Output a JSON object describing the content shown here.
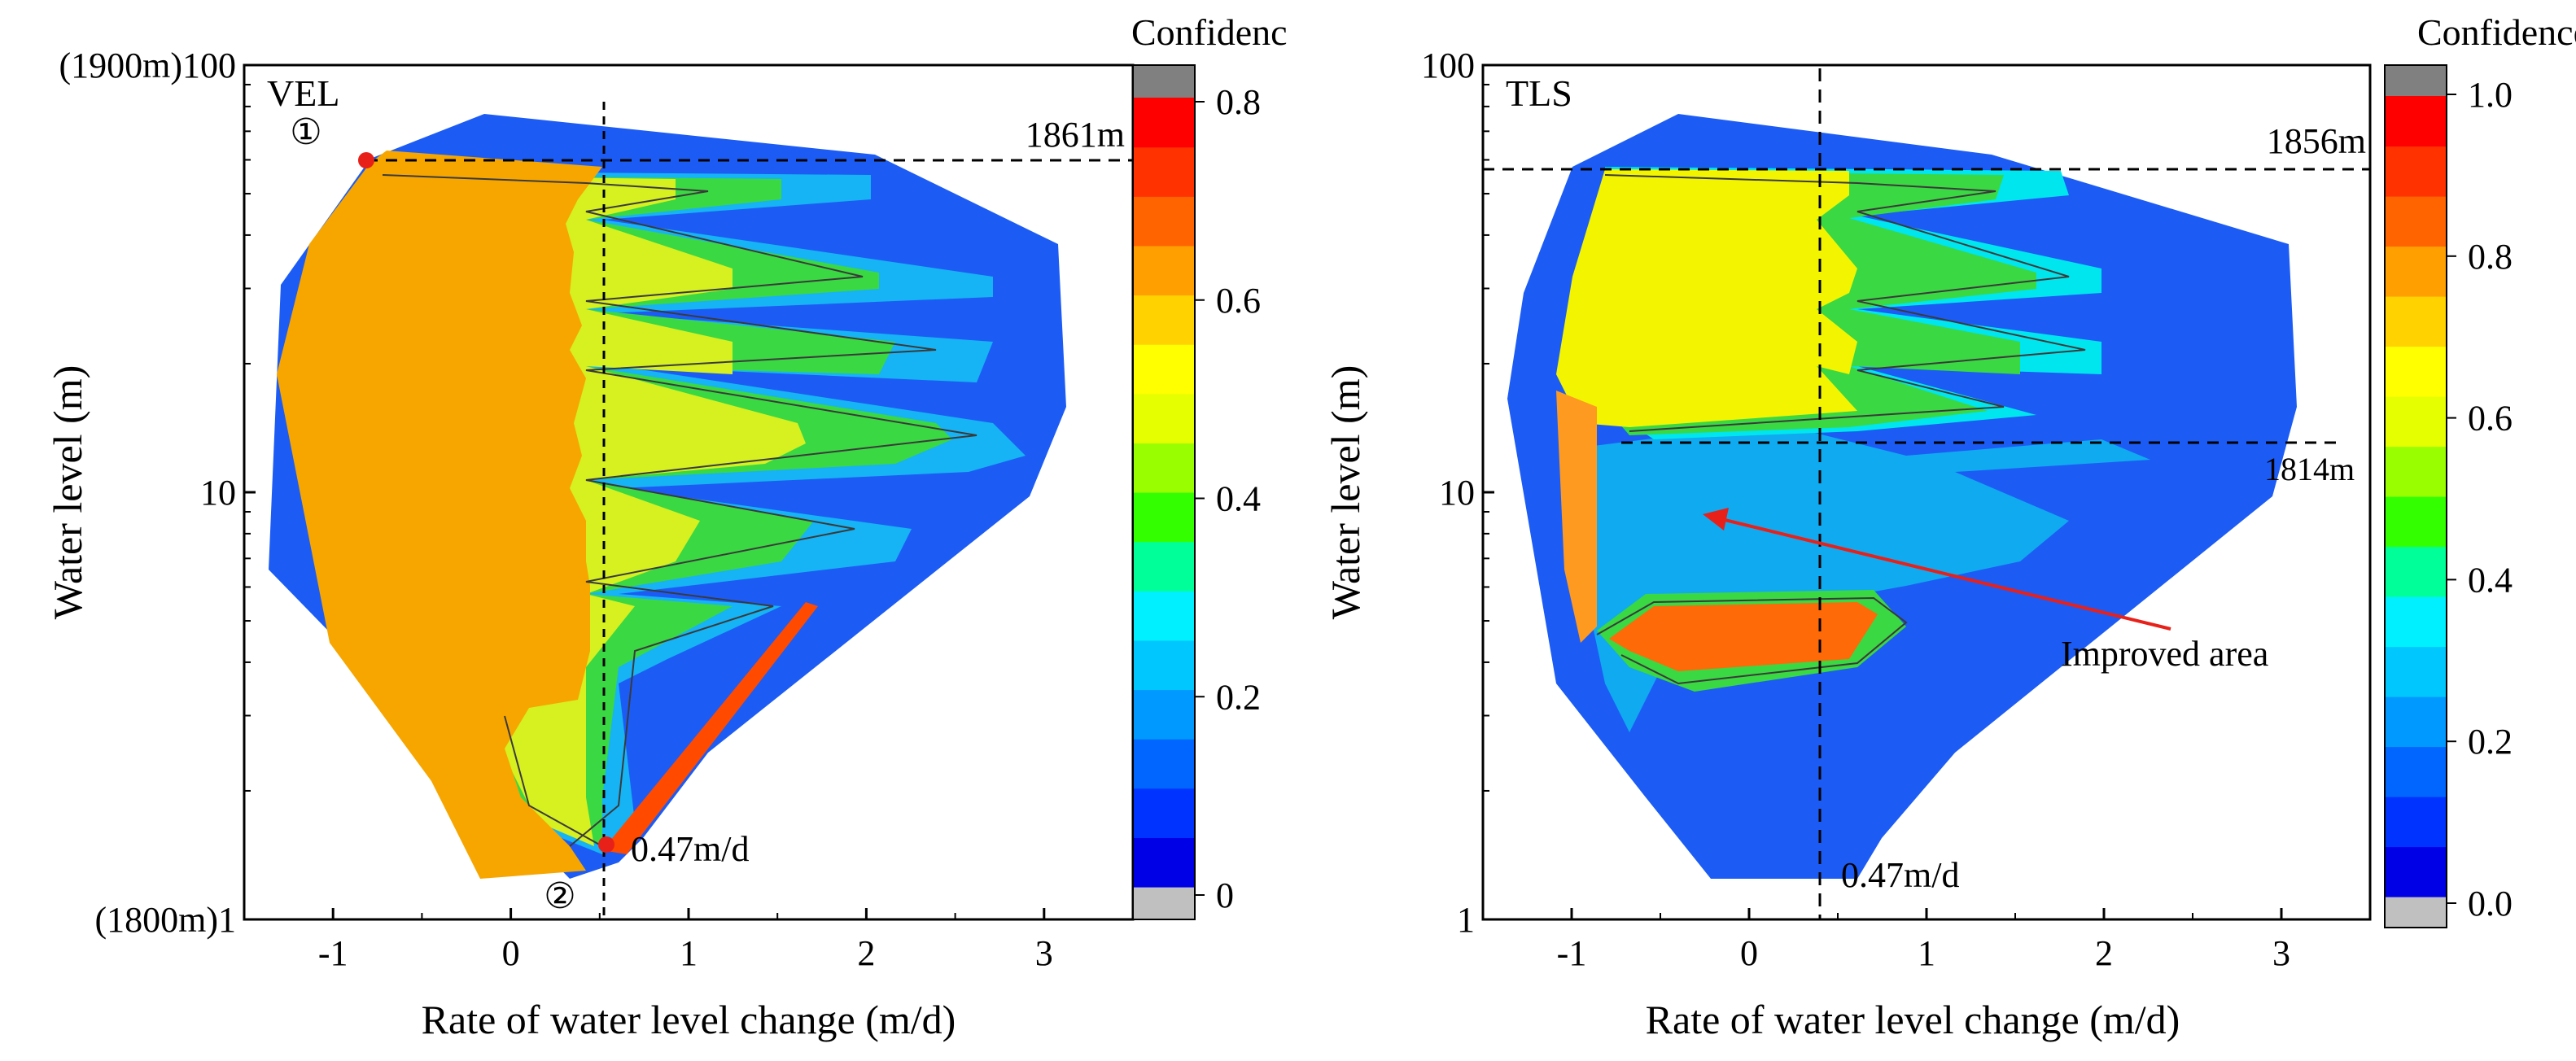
{
  "chart_data": [
    {
      "type": "heatmap",
      "panel_label": "VEL",
      "xlabel": "Rate of water level change (m/d)",
      "ylabel": "Water level (m)",
      "xlim": [
        -1.5,
        3.5
      ],
      "ylim": [
        1,
        100
      ],
      "yscale": "log",
      "x_ticks": [
        -1,
        0,
        1,
        2,
        3
      ],
      "x_tick_labels": [
        "-1",
        "0",
        "1",
        "2",
        "3"
      ],
      "y_ticks": [
        1,
        10,
        100
      ],
      "y_tick_labels": [
        "(1800m)1",
        "10",
        "(1900m)100"
      ],
      "colorbar": {
        "title": "Confidence",
        "range": [
          0,
          0.8
        ],
        "ticks": [
          0,
          0.2,
          0.4,
          0.6,
          0.8
        ],
        "tick_labels": [
          "0",
          "0.2",
          "0.4",
          "0.6",
          "0.8"
        ]
      },
      "annotations": [
        {
          "text": "1861m",
          "kind": "horizontal-reference",
          "y": 60
        },
        {
          "text": "0.47m/d",
          "kind": "vertical-reference",
          "x": 0.5
        },
        {
          "text": "①",
          "kind": "marker-label",
          "x": -0.85,
          "y": 60
        },
        {
          "text": "②",
          "kind": "marker-label",
          "x": 0.52,
          "y": 1.55
        }
      ],
      "points": [
        {
          "x": -0.85,
          "y": 60,
          "color": "#e8201a"
        },
        {
          "x": 0.52,
          "y": 1.55,
          "color": "#e8201a"
        }
      ]
    },
    {
      "type": "heatmap",
      "panel_label": "TLS",
      "xlabel": "Rate of water level change (m/d)",
      "ylabel": "Water level (m)",
      "xlim": [
        -1.5,
        3.5
      ],
      "ylim": [
        1,
        100
      ],
      "yscale": "log",
      "x_ticks": [
        -1,
        0,
        1,
        2,
        3
      ],
      "x_tick_labels": [
        "-1",
        "0",
        "1",
        "2",
        "3"
      ],
      "y_ticks": [
        1,
        10,
        100
      ],
      "y_tick_labels": [
        "1",
        "10",
        "100"
      ],
      "colorbar": {
        "title": "Confidence",
        "range": [
          0,
          1.0
        ],
        "ticks": [
          0,
          0.2,
          0.4,
          0.6,
          0.8,
          1.0
        ],
        "tick_labels": [
          "0.0",
          "0.2",
          "0.4",
          "0.6",
          "0.8",
          "1.0"
        ]
      },
      "annotations": [
        {
          "text": "1856m",
          "kind": "horizontal-reference",
          "y": 57
        },
        {
          "text": "1814m",
          "kind": "horizontal-reference",
          "y": 13
        },
        {
          "text": "0.47m/d",
          "kind": "vertical-reference",
          "x": 0.5
        },
        {
          "text": "Improved area",
          "kind": "arrow-callout",
          "x": 0.05,
          "y": 9.3
        }
      ]
    }
  ],
  "colors": {
    "scale": [
      "#0000e6",
      "#0033ff",
      "#0066ff",
      "#0099ff",
      "#00c8ff",
      "#00f0ff",
      "#00ff99",
      "#33ff00",
      "#99ff00",
      "#e6ff00",
      "#ffff00",
      "#ffd200",
      "#ffa000",
      "#ff6400",
      "#ff3200",
      "#ff0000"
    ],
    "over": "#808080",
    "under": "#c0c0c0",
    "marker": "#e8201a",
    "arrow": "#e8201a"
  }
}
